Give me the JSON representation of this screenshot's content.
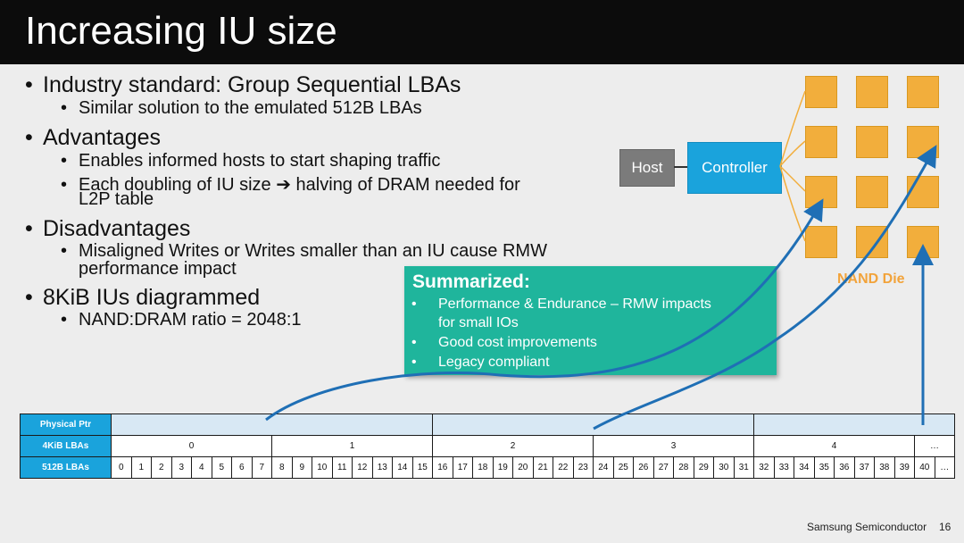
{
  "slide": {
    "title": "Increasing IU size",
    "bullets": [
      {
        "text": "Industry standard: Group Sequential LBAs",
        "sub": [
          "Similar solution to the emulated 512B LBAs"
        ]
      },
      {
        "text": "Advantages",
        "sub": [
          "Enables informed hosts to start shaping traffic",
          "Each doubling of IU size ➔ halving of DRAM needed for",
          "L2P table"
        ]
      },
      {
        "text": "Disadvantages",
        "sub": [
          "Misaligned Writes or Writes smaller than an IU cause RMW",
          "performance impact"
        ]
      },
      {
        "text": "8KiB IUs diagrammed",
        "sub": [
          "NAND:DRAM ratio = 2048:1"
        ]
      }
    ],
    "bullet_glyph": "•"
  },
  "diagram": {
    "host_label": "Host",
    "controller_label": "Controller",
    "nand_label": "NAND Die",
    "colors": {
      "host": "#7b7b7b",
      "controller": "#1aa3dc",
      "nand": "#f2ae3c",
      "arrow": "#1f6fb5"
    }
  },
  "summary": {
    "title": "Summarized:",
    "items": [
      "Performance & Endurance – RMW impacts",
      "for small IOs",
      "Good cost improvements",
      "Legacy compliant"
    ],
    "color": "#1fb59c"
  },
  "table": {
    "row_labels": [
      "Physical Ptr",
      "4KiB LBAs",
      "512B LBAs"
    ],
    "lba4k": [
      "0",
      "1",
      "2",
      "3",
      "4",
      "…"
    ],
    "lba512": [
      "0",
      "1",
      "2",
      "3",
      "4",
      "5",
      "6",
      "7",
      "8",
      "9",
      "10",
      "11",
      "12",
      "13",
      "14",
      "15",
      "16",
      "17",
      "18",
      "19",
      "20",
      "21",
      "22",
      "23",
      "24",
      "25",
      "26",
      "27",
      "28",
      "29",
      "30",
      "31",
      "32",
      "33",
      "34",
      "35",
      "36",
      "37",
      "38",
      "39",
      "40",
      "…"
    ]
  },
  "footer": {
    "company": "Samsung Semiconductor",
    "page": "16"
  }
}
